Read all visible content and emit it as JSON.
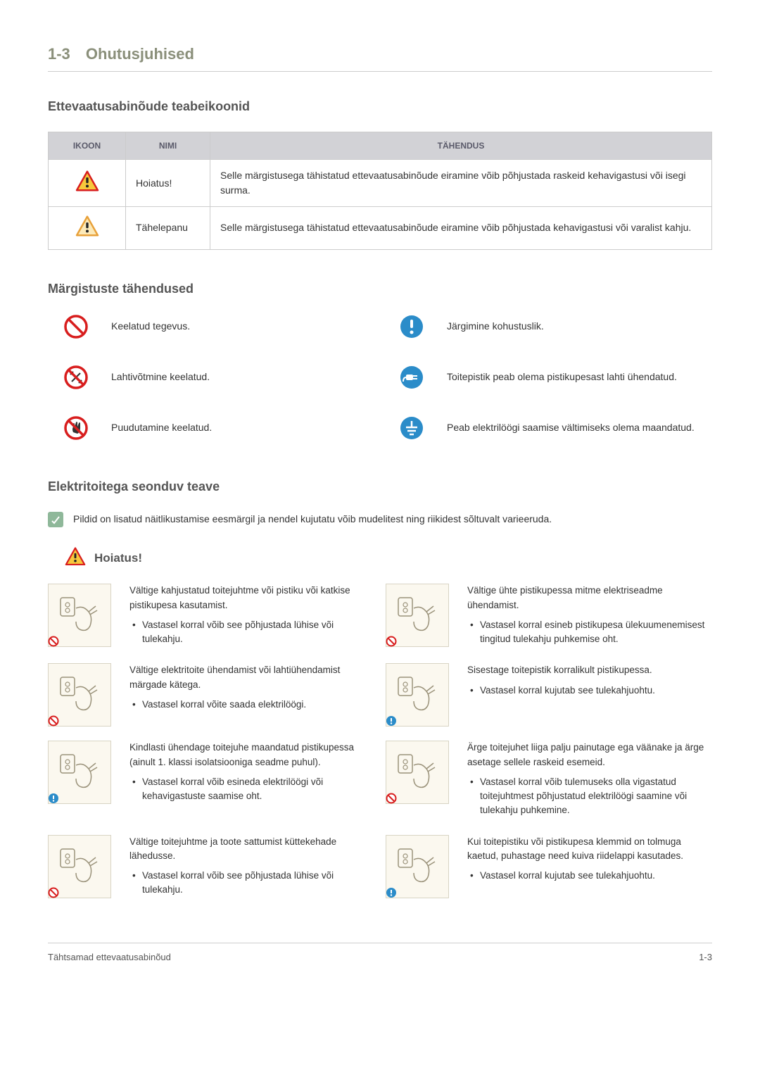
{
  "header": {
    "section_number": "1-3",
    "section_title": "Ohutusjuhised"
  },
  "sections": {
    "precaution_icons_heading": "Ettevaatusabinõude teabeikoonid",
    "symbol_meanings_heading": "Märgistuste tähendused",
    "power_heading": "Elektritoitega seonduv teave",
    "warning_label": "Hoiatus!"
  },
  "icon_table": {
    "headers": {
      "icon": "IKOON",
      "name": "NIMI",
      "meaning": "TÄHENDUS"
    },
    "rows": [
      {
        "name": "Hoiatus!",
        "meaning": "Selle märgistusega tähistatud ettevaatusabinõude eiramine võib põhjustada raskeid keha­vigastusi või isegi surma.",
        "icon_colors": {
          "border": "#d81e1e",
          "fill": "#f7c83c"
        }
      },
      {
        "name": "Tähelepanu",
        "meaning": "Selle märgistusega tähistatud ettevaatusabinõude eiramine võib põhjustada kehavigastusi või varalist kahju.",
        "icon_colors": {
          "border": "#e8a13a",
          "fill": "#fce9b8"
        }
      }
    ]
  },
  "symbols": {
    "left": [
      {
        "text": "Keelatud tegevus.",
        "type": "prohibit",
        "inner": "none"
      },
      {
        "text": "Lahtivõtmine keelatud.",
        "type": "prohibit",
        "inner": "tool"
      },
      {
        "text": "Puudutamine keelatud.",
        "type": "prohibit",
        "inner": "hand"
      }
    ],
    "right": [
      {
        "text": "Järgimine kohustuslik.",
        "type": "mandatory",
        "inner": "bang"
      },
      {
        "text": "Toitepistik peab olema pistikupesast lahti ühendatud.",
        "type": "mandatory",
        "inner": "plug"
      },
      {
        "text": "Peab elektrilöögi saamise vältimiseks olema maandatud.",
        "type": "mandatory",
        "inner": "ground"
      }
    ]
  },
  "power_note": "Pildid on lisatud näitlikustamise eesmärgil ja nendel kujutatu võib mudelitest ning riikidest sõltuvalt varieeruda.",
  "hazards": [
    {
      "badge": "prohibit",
      "main": "Vältige kahjustatud toitejuhtme või pistiku või katkise pistikupesa kasutamist.",
      "bullets": [
        "Vastasel korral võib see põhjustada lühise või tulekahju."
      ]
    },
    {
      "badge": "prohibit",
      "main": "Vältige ühte pistikupessa mitme elektri­seadme ühendamist.",
      "bullets": [
        "Vastasel korral esineb pistikupesa ülekuumenemisest tingitud tulekahju puhkemise oht."
      ]
    },
    {
      "badge": "prohibit",
      "main": "Vältige elektritoite ühendamist või lahti­ühendamist märgade kätega.",
      "bullets": [
        "Vastasel korral võite saada elektrilöögi."
      ]
    },
    {
      "badge": "mandatory",
      "main": "Sisestage toitepistik korralikult pistikupessa.",
      "bullets": [
        "Vastasel korral kujutab see tulekahjuohtu."
      ]
    },
    {
      "badge": "mandatory",
      "main": "Kindlasti ühendage toitejuhe maandatud pistikupessa (ainult 1. klassi isolatsiooniga seadme puhul).",
      "bullets": [
        "Vastasel korral võib esineda elektrilöögi või kehavigastuste saamise oht."
      ]
    },
    {
      "badge": "prohibit",
      "main": "Ärge toitejuhet liiga palju painutage ega väänake ja ärge asetage sellele raskeid esemeid.",
      "bullets": [
        "Vastasel korral võib tulemuseks olla vigastatud toitejuhtmest põhjustatud elektrilöögi saamine või tulekahju puhkemine."
      ]
    },
    {
      "badge": "prohibit",
      "main": "Vältige toitejuhtme ja toote sattumist kütte­kehade lähedusse.",
      "bullets": [
        "Vastasel korral võib see põhjustada lühise või tulekahju."
      ]
    },
    {
      "badge": "mandatory",
      "main": "Kui toitepistiku või pistikupesa klemmid on tolmuga kaetud, puhastage need kuiva rii­delappi kasutades.",
      "bullets": [
        "Vastasel korral kujutab see tulekahjuohtu."
      ]
    }
  ],
  "footer": {
    "left": "Tähtsamad ettevaatusabinõud",
    "right": "1-3"
  },
  "colors": {
    "prohibit": "#d81e1e",
    "mandatory": "#2b8cc9",
    "note_bg": "#8fb89a"
  }
}
